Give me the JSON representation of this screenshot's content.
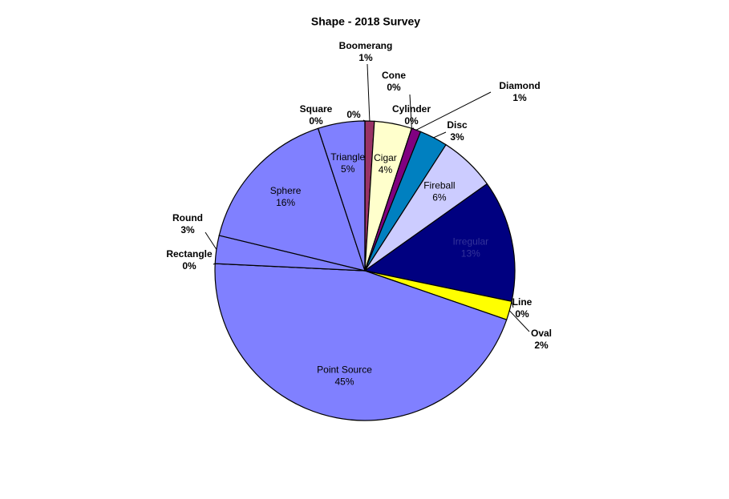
{
  "chart_data": {
    "type": "pie",
    "title": "Shape - 2018 Survey",
    "categories": [
      "Boomerang",
      "Cigar",
      "Cone",
      "Cylinder",
      "Diamond",
      "Disc",
      "Fireball",
      "Irregular",
      "Line",
      "Oval",
      "Point Source",
      "Rectangle",
      "Round",
      "Sphere",
      "Square",
      "Triangle",
      null
    ],
    "values": [
      1,
      4,
      0,
      0,
      1,
      3,
      6,
      13,
      0,
      2,
      45,
      0,
      3,
      16,
      0,
      5,
      0
    ],
    "value_labels": [
      "1%",
      "4%",
      "0%",
      "0%",
      "1%",
      "3%",
      "6%",
      "13%",
      "0%",
      "2%",
      "45%",
      "0%",
      "3%",
      "16%",
      "0%",
      "5%",
      "0%"
    ],
    "colors": [
      "#993366",
      "#ffffcc",
      "#ccffff",
      "#ff8080",
      "#800080",
      "#0080c0",
      "#ccccff",
      "#000080",
      "#ff00ff",
      "#ffff00",
      "#8080ff",
      "#8080ff",
      "#8080ff",
      "#8080ff",
      "#8080ff",
      "#8080ff",
      "#8080ff"
    ]
  }
}
